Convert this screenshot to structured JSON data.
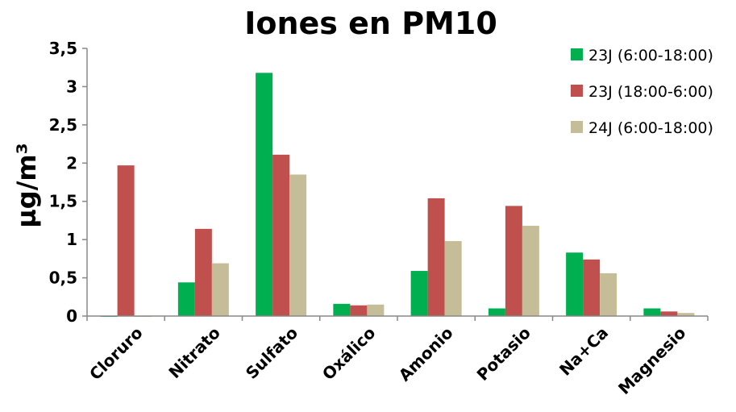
{
  "chart_data": {
    "type": "bar",
    "title": "Iones en PM10",
    "ylabel": "µg/m³",
    "xlabel": "",
    "categories": [
      "Cloruro",
      "Nitrato",
      "Sulfato",
      "Oxálico",
      "Amonio",
      "Potasio",
      "Na+Ca",
      "Magnesio"
    ],
    "series": [
      {
        "name": "23J (6:00-18:00)",
        "color": "#00b050",
        "values": [
          -0.01,
          0.44,
          3.18,
          0.16,
          0.59,
          0.1,
          0.83,
          0.1
        ]
      },
      {
        "name": "23J (18:00-6:00)",
        "color": "#c0504d",
        "values": [
          1.97,
          1.14,
          2.11,
          0.14,
          1.54,
          1.44,
          0.74,
          0.06
        ]
      },
      {
        "name": "24J (6:00-18:00)",
        "color": "#c4bd97",
        "values": [
          -0.01,
          0.69,
          1.85,
          0.15,
          0.98,
          1.18,
          0.56,
          0.04
        ]
      }
    ],
    "yticks": [
      "0",
      "0,5",
      "1",
      "1,5",
      "2",
      "2,5",
      "3",
      "3,5"
    ],
    "ytick_values": [
      0,
      0.5,
      1,
      1.5,
      2,
      2.5,
      3,
      3.5
    ],
    "ylim": [
      0,
      3.5
    ],
    "grid": false,
    "legend_position": "top-right"
  }
}
